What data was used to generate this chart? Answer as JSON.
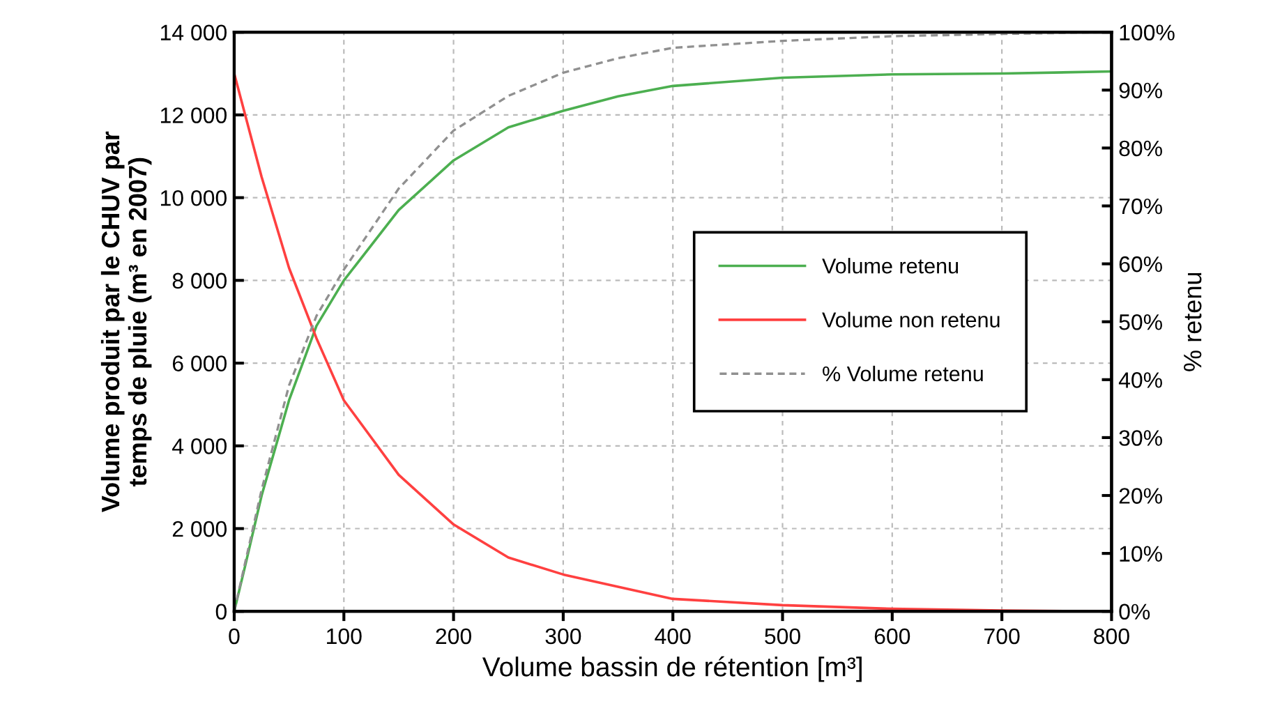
{
  "chart_data": {
    "type": "line",
    "xlabel": "Volume bassin de rétention [m³]",
    "ylabel": "Volume produit par le CHUV par\ntemps de pluie (m³ en 2007)",
    "y2label": "% retenu",
    "xlim": [
      0,
      800
    ],
    "xticks": [
      0,
      100,
      200,
      300,
      400,
      500,
      600,
      700,
      800
    ],
    "ylim": [
      0,
      14000
    ],
    "yticks": [
      {
        "value": 0,
        "label": "0"
      },
      {
        "value": 2000,
        "label": "2 000"
      },
      {
        "value": 4000,
        "label": "4 000"
      },
      {
        "value": 6000,
        "label": "6 000"
      },
      {
        "value": 8000,
        "label": "8 000"
      },
      {
        "value": 10000,
        "label": "10 000"
      },
      {
        "value": 12000,
        "label": "12 000"
      },
      {
        "value": 14000,
        "label": "14 000"
      }
    ],
    "y2lim": [
      0,
      100
    ],
    "y2ticks": [
      {
        "value": 0,
        "label": "0%"
      },
      {
        "value": 10,
        "label": "10%"
      },
      {
        "value": 20,
        "label": "20%"
      },
      {
        "value": 30,
        "label": "30%"
      },
      {
        "value": 40,
        "label": "40%"
      },
      {
        "value": 50,
        "label": "50%"
      },
      {
        "value": 60,
        "label": "60%"
      },
      {
        "value": 70,
        "label": "70%"
      },
      {
        "value": 80,
        "label": "80%"
      },
      {
        "value": 90,
        "label": "90%"
      },
      {
        "value": 100,
        "label": "100%"
      }
    ],
    "grid": true,
    "legend": "right",
    "marker": "none",
    "series": [
      {
        "name": "Volume retenu",
        "color": "#4caf50",
        "line_style": "solid",
        "x": [
          0,
          10,
          25,
          50,
          75,
          100,
          150,
          200,
          250,
          300,
          350,
          400,
          500,
          600,
          700,
          800
        ],
        "values": [
          0,
          1100,
          2800,
          5100,
          6900,
          8000,
          9700,
          10900,
          11700,
          12100,
          12450,
          12700,
          12900,
          12980,
          13000,
          13050
        ]
      },
      {
        "name": "Volume non retenu",
        "color": "#ff4040",
        "line_style": "solid",
        "x": [
          0,
          25,
          50,
          75,
          100,
          150,
          200,
          250,
          300,
          400,
          500,
          600,
          700,
          800
        ],
        "values": [
          13000,
          10500,
          8300,
          6600,
          5100,
          3300,
          2100,
          1300,
          890,
          300,
          150,
          60,
          20,
          0
        ]
      },
      {
        "name": "% Volume retenu",
        "color": "#909090",
        "line_style": "dashed",
        "axis": "y2",
        "x": [
          0,
          25,
          50,
          75,
          100,
          150,
          200,
          250,
          300,
          350,
          400,
          500,
          600,
          700,
          800
        ],
        "values": [
          0,
          21,
          39,
          51,
          59,
          73,
          83,
          89,
          93,
          95.5,
          97.3,
          98.5,
          99.3,
          99.7,
          100
        ]
      }
    ]
  }
}
